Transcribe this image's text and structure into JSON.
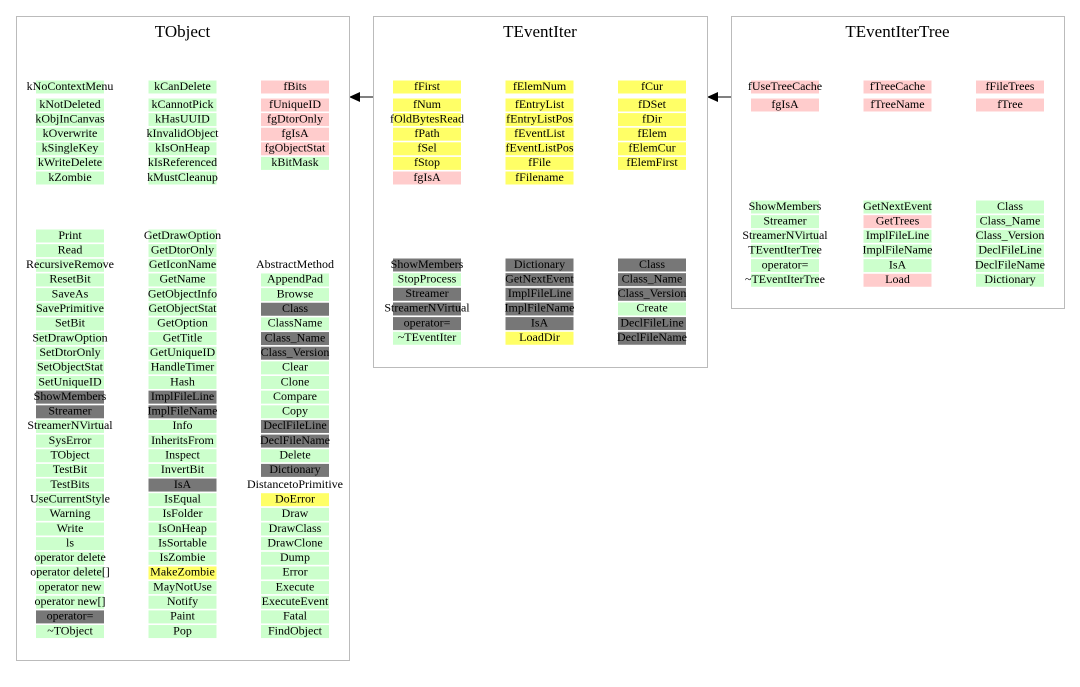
{
  "classes": [
    {
      "name": "TObject",
      "members": [
        [
          {
            "label": "kNoContextMenu",
            "color": "#ccffcc"
          },
          {
            "label": "kNotDeleted",
            "color": "#ccffcc"
          },
          {
            "label": "kObjInCanvas",
            "color": "#ccffcc"
          },
          {
            "label": "kOverwrite",
            "color": "#ccffcc"
          },
          {
            "label": "kSingleKey",
            "color": "#ccffcc"
          },
          {
            "label": "kWriteDelete",
            "color": "#ccffcc"
          },
          {
            "label": "kZombie",
            "color": "#ccffcc"
          }
        ],
        [
          {
            "label": "kCanDelete",
            "color": "#ccffcc"
          },
          {
            "label": "kCannotPick",
            "color": "#ccffcc"
          },
          {
            "label": "kHasUUID",
            "color": "#ccffcc"
          },
          {
            "label": "kInvalidObject",
            "color": "#ccffcc"
          },
          {
            "label": "kIsOnHeap",
            "color": "#ccffcc"
          },
          {
            "label": "kIsReferenced",
            "color": "#ccffcc"
          },
          {
            "label": "kMustCleanup",
            "color": "#ccffcc"
          }
        ],
        [
          {
            "label": "fBits",
            "color": "#ffcccc"
          },
          {
            "label": "fUniqueID",
            "color": "#ffcccc"
          },
          {
            "label": "fgDtorOnly",
            "color": "#ffcccc"
          },
          {
            "label": "fgIsA",
            "color": "#ffcccc"
          },
          {
            "label": "fgObjectStat",
            "color": "#ffcccc"
          },
          {
            "label": "kBitMask",
            "color": "#ccffcc"
          }
        ]
      ],
      "methods": [
        [
          {
            "label": "Print",
            "color": "#ccffcc"
          },
          {
            "label": "Read",
            "color": "#ccffcc"
          },
          {
            "label": "RecursiveRemove",
            "color": "#ccffcc"
          },
          {
            "label": "ResetBit",
            "color": "#ccffcc"
          },
          {
            "label": "SaveAs",
            "color": "#ccffcc"
          },
          {
            "label": "SavePrimitive",
            "color": "#ccffcc"
          },
          {
            "label": "SetBit",
            "color": "#ccffcc"
          },
          {
            "label": "SetDrawOption",
            "color": "#ccffcc"
          },
          {
            "label": "SetDtorOnly",
            "color": "#ccffcc"
          },
          {
            "label": "SetObjectStat",
            "color": "#ccffcc"
          },
          {
            "label": "SetUniqueID",
            "color": "#ccffcc"
          },
          {
            "label": "ShowMembers",
            "color": "#777777"
          },
          {
            "label": "Streamer",
            "color": "#777777"
          },
          {
            "label": "StreamerNVirtual",
            "color": "#ccffcc"
          },
          {
            "label": "SysError",
            "color": "#ccffcc"
          },
          {
            "label": "TObject",
            "color": "#ccffcc"
          },
          {
            "label": "TestBit",
            "color": "#ccffcc"
          },
          {
            "label": "TestBits",
            "color": "#ccffcc"
          },
          {
            "label": "UseCurrentStyle",
            "color": "#ccffcc"
          },
          {
            "label": "Warning",
            "color": "#ccffcc"
          },
          {
            "label": "Write",
            "color": "#ccffcc"
          },
          {
            "label": "ls",
            "color": "#ccffcc"
          },
          {
            "label": "operator delete",
            "color": "#ccffcc"
          },
          {
            "label": "operator delete[]",
            "color": "#ccffcc"
          },
          {
            "label": "operator new",
            "color": "#ccffcc"
          },
          {
            "label": "operator new[]",
            "color": "#ccffcc"
          },
          {
            "label": "operator=",
            "color": "#777777"
          },
          {
            "label": "~TObject",
            "color": "#ccffcc"
          }
        ],
        [
          {
            "label": "GetDrawOption",
            "color": "#ccffcc"
          },
          {
            "label": "GetDtorOnly",
            "color": "#ccffcc"
          },
          {
            "label": "GetIconName",
            "color": "#ccffcc"
          },
          {
            "label": "GetName",
            "color": "#ccffcc"
          },
          {
            "label": "GetObjectInfo",
            "color": "#ccffcc"
          },
          {
            "label": "GetObjectStat",
            "color": "#ccffcc"
          },
          {
            "label": "GetOption",
            "color": "#ccffcc"
          },
          {
            "label": "GetTitle",
            "color": "#ccffcc"
          },
          {
            "label": "GetUniqueID",
            "color": "#ccffcc"
          },
          {
            "label": "HandleTimer",
            "color": "#ccffcc"
          },
          {
            "label": "Hash",
            "color": "#ccffcc"
          },
          {
            "label": "ImplFileLine",
            "color": "#777777"
          },
          {
            "label": "ImplFileName",
            "color": "#777777"
          },
          {
            "label": "Info",
            "color": "#ccffcc"
          },
          {
            "label": "InheritsFrom",
            "color": "#ccffcc"
          },
          {
            "label": "Inspect",
            "color": "#ccffcc"
          },
          {
            "label": "InvertBit",
            "color": "#ccffcc"
          },
          {
            "label": "IsA",
            "color": "#777777"
          },
          {
            "label": "IsEqual",
            "color": "#ccffcc"
          },
          {
            "label": "IsFolder",
            "color": "#ccffcc"
          },
          {
            "label": "IsOnHeap",
            "color": "#ccffcc"
          },
          {
            "label": "IsSortable",
            "color": "#ccffcc"
          },
          {
            "label": "IsZombie",
            "color": "#ccffcc"
          },
          {
            "label": "MakeZombie",
            "color": "#ffff66"
          },
          {
            "label": "MayNotUse",
            "color": "#ccffcc"
          },
          {
            "label": "Notify",
            "color": "#ccffcc"
          },
          {
            "label": "Paint",
            "color": "#ccffcc"
          },
          {
            "label": "Pop",
            "color": "#ccffcc"
          }
        ],
        [
          {
            "label": "AbstractMethod",
            "color": "#ffffff"
          },
          {
            "label": "AppendPad",
            "color": "#ccffcc"
          },
          {
            "label": "Browse",
            "color": "#ccffcc"
          },
          {
            "label": "Class",
            "color": "#777777"
          },
          {
            "label": "ClassName",
            "color": "#ccffcc"
          },
          {
            "label": "Class_Name",
            "color": "#777777"
          },
          {
            "label": "Class_Version",
            "color": "#777777"
          },
          {
            "label": "Clear",
            "color": "#ccffcc"
          },
          {
            "label": "Clone",
            "color": "#ccffcc"
          },
          {
            "label": "Compare",
            "color": "#ccffcc"
          },
          {
            "label": "Copy",
            "color": "#ccffcc"
          },
          {
            "label": "DeclFileLine",
            "color": "#777777"
          },
          {
            "label": "DeclFileName",
            "color": "#777777"
          },
          {
            "label": "Delete",
            "color": "#ccffcc"
          },
          {
            "label": "Dictionary",
            "color": "#777777"
          },
          {
            "label": "DistancetoPrimitive",
            "color": "#ffffff"
          },
          {
            "label": "DoError",
            "color": "#ffff66"
          },
          {
            "label": "Draw",
            "color": "#ccffcc"
          },
          {
            "label": "DrawClass",
            "color": "#ccffcc"
          },
          {
            "label": "DrawClone",
            "color": "#ccffcc"
          },
          {
            "label": "Dump",
            "color": "#ccffcc"
          },
          {
            "label": "Error",
            "color": "#ccffcc"
          },
          {
            "label": "Execute",
            "color": "#ccffcc"
          },
          {
            "label": "ExecuteEvent",
            "color": "#ccffcc"
          },
          {
            "label": "Fatal",
            "color": "#ccffcc"
          },
          {
            "label": "FindObject",
            "color": "#ccffcc"
          }
        ]
      ]
    },
    {
      "name": "TEventIter",
      "members": [
        [
          {
            "label": "fFirst",
            "color": "#ffff66"
          },
          {
            "label": "fNum",
            "color": "#ffff66"
          },
          {
            "label": "fOldBytesRead",
            "color": "#ffff66"
          },
          {
            "label": "fPath",
            "color": "#ffff66"
          },
          {
            "label": "fSel",
            "color": "#ffff66"
          },
          {
            "label": "fStop",
            "color": "#ffff66"
          },
          {
            "label": "fgIsA",
            "color": "#ffcccc"
          }
        ],
        [
          {
            "label": "fElemNum",
            "color": "#ffff66"
          },
          {
            "label": "fEntryList",
            "color": "#ffff66"
          },
          {
            "label": "fEntryListPos",
            "color": "#ffff66"
          },
          {
            "label": "fEventList",
            "color": "#ffff66"
          },
          {
            "label": "fEventListPos",
            "color": "#ffff66"
          },
          {
            "label": "fFile",
            "color": "#ffff66"
          },
          {
            "label": "fFilename",
            "color": "#ffff66"
          }
        ],
        [
          {
            "label": "fCur",
            "color": "#ffff66"
          },
          {
            "label": "fDSet",
            "color": "#ffff66"
          },
          {
            "label": "fDir",
            "color": "#ffff66"
          },
          {
            "label": "fElem",
            "color": "#ffff66"
          },
          {
            "label": "fElemCur",
            "color": "#ffff66"
          },
          {
            "label": "fElemFirst",
            "color": "#ffff66"
          }
        ]
      ],
      "methods": [
        [
          {
            "label": "ShowMembers",
            "color": "#777777"
          },
          {
            "label": "StopProcess",
            "color": "#ccffcc"
          },
          {
            "label": "Streamer",
            "color": "#777777"
          },
          {
            "label": "StreamerNVirtual",
            "color": "#777777"
          },
          {
            "label": "operator=",
            "color": "#777777"
          },
          {
            "label": "~TEventIter",
            "color": "#ccffcc"
          }
        ],
        [
          {
            "label": "Dictionary",
            "color": "#777777"
          },
          {
            "label": "GetNextEvent",
            "color": "#777777"
          },
          {
            "label": "ImplFileLine",
            "color": "#777777"
          },
          {
            "label": "ImplFileName",
            "color": "#777777"
          },
          {
            "label": "IsA",
            "color": "#777777"
          },
          {
            "label": "LoadDir",
            "color": "#ffff66"
          }
        ],
        [
          {
            "label": "Class",
            "color": "#777777"
          },
          {
            "label": "Class_Name",
            "color": "#777777"
          },
          {
            "label": "Class_Version",
            "color": "#777777"
          },
          {
            "label": "Create",
            "color": "#ccffcc"
          },
          {
            "label": "DeclFileLine",
            "color": "#777777"
          },
          {
            "label": "DeclFileName",
            "color": "#777777"
          }
        ]
      ]
    },
    {
      "name": "TEventIterTree",
      "members": [
        [
          {
            "label": "fUseTreeCache",
            "color": "#ffcccc"
          },
          {
            "label": "fgIsA",
            "color": "#ffcccc"
          }
        ],
        [
          {
            "label": "fTreeCache",
            "color": "#ffcccc"
          },
          {
            "label": "fTreeName",
            "color": "#ffcccc"
          }
        ],
        [
          {
            "label": "fFileTrees",
            "color": "#ffcccc"
          },
          {
            "label": "fTree",
            "color": "#ffcccc"
          }
        ]
      ],
      "methods": [
        [
          {
            "label": "ShowMembers",
            "color": "#ccffcc"
          },
          {
            "label": "Streamer",
            "color": "#ccffcc"
          },
          {
            "label": "StreamerNVirtual",
            "color": "#ccffcc"
          },
          {
            "label": "TEventIterTree",
            "color": "#ccffcc"
          },
          {
            "label": "operator=",
            "color": "#ccffcc"
          },
          {
            "label": "~TEventIterTree",
            "color": "#ccffcc"
          }
        ],
        [
          {
            "label": "GetNextEvent",
            "color": "#ccffcc"
          },
          {
            "label": "GetTrees",
            "color": "#ffcccc"
          },
          {
            "label": "ImplFileLine",
            "color": "#ccffcc"
          },
          {
            "label": "ImplFileName",
            "color": "#ccffcc"
          },
          {
            "label": "IsA",
            "color": "#ccffcc"
          },
          {
            "label": "Load",
            "color": "#ffcccc"
          }
        ],
        [
          {
            "label": "Class",
            "color": "#ccffcc"
          },
          {
            "label": "Class_Name",
            "color": "#ccffcc"
          },
          {
            "label": "Class_Version",
            "color": "#ccffcc"
          },
          {
            "label": "DeclFileLine",
            "color": "#ccffcc"
          },
          {
            "label": "DeclFileName",
            "color": "#ccffcc"
          },
          {
            "label": "Dictionary",
            "color": "#ccffcc"
          }
        ]
      ]
    }
  ]
}
